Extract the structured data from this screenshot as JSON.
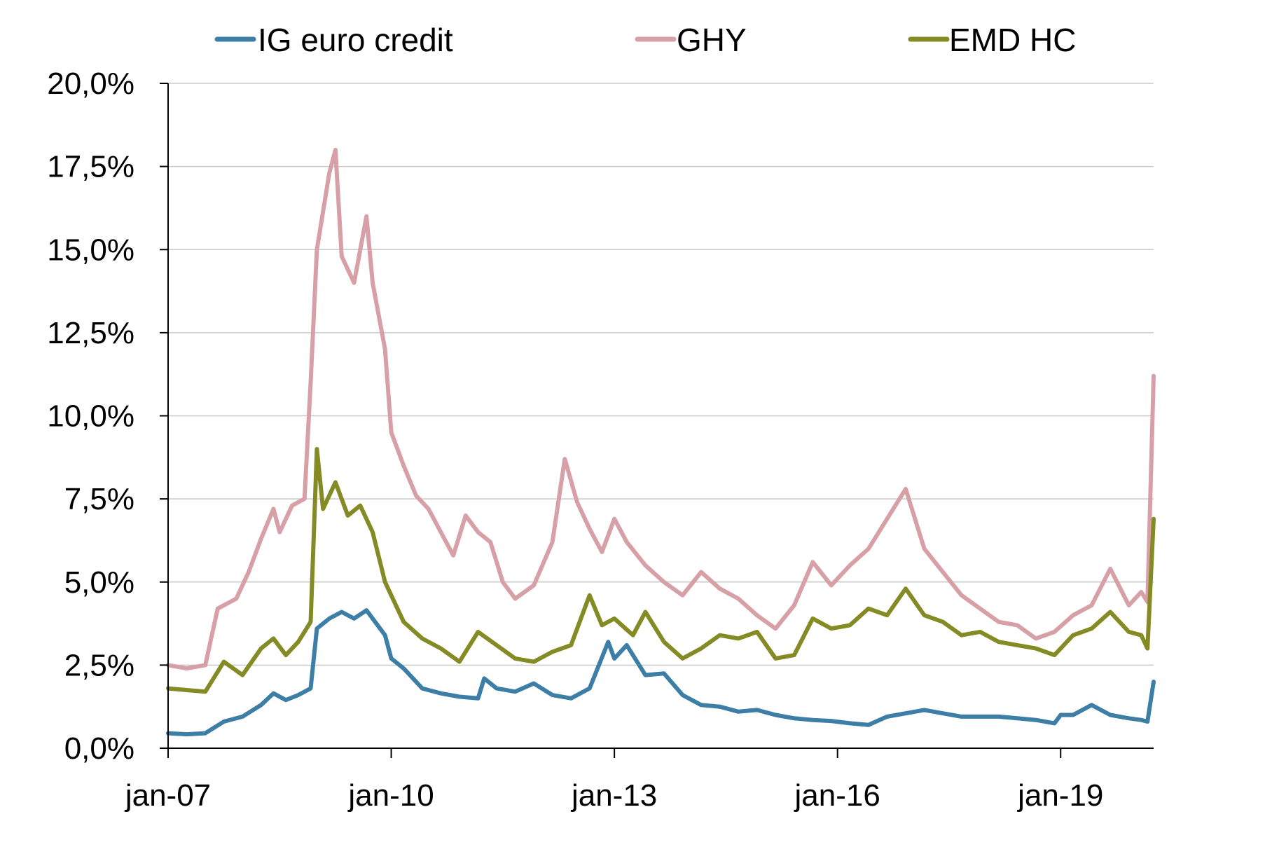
{
  "chart_data": {
    "type": "line",
    "title": "",
    "xlabel": "",
    "ylabel": "",
    "x_range": [
      "2007-01",
      "2020-04"
    ],
    "ylim": [
      0,
      20
    ],
    "y_ticks": [
      0,
      2.5,
      5,
      7.5,
      10,
      12.5,
      15,
      17.5,
      20
    ],
    "y_tick_labels": [
      "0,0%",
      "2,5%",
      "5,0%",
      "7,5%",
      "10,0%",
      "12,5%",
      "15,0%",
      "17,5%",
      "20,0%"
    ],
    "x_ticks": [
      "2007-01",
      "2010-01",
      "2013-01",
      "2016-01",
      "2019-01"
    ],
    "x_tick_labels": [
      "jan-07",
      "jan-10",
      "jan-13",
      "jan-16",
      "jan-19"
    ],
    "grid": "horizontal",
    "legend_position": "top",
    "series": [
      {
        "name": "IG euro credit",
        "color": "#3d7ea6",
        "points": [
          [
            "2007-01",
            0.45
          ],
          [
            "2007-04",
            0.42
          ],
          [
            "2007-07",
            0.45
          ],
          [
            "2007-10",
            0.8
          ],
          [
            "2008-01",
            0.95
          ],
          [
            "2008-04",
            1.3
          ],
          [
            "2008-06",
            1.65
          ],
          [
            "2008-08",
            1.45
          ],
          [
            "2008-10",
            1.6
          ],
          [
            "2008-12",
            1.8
          ],
          [
            "2009-01",
            3.6
          ],
          [
            "2009-03",
            3.9
          ],
          [
            "2009-05",
            4.1
          ],
          [
            "2009-07",
            3.9
          ],
          [
            "2009-09",
            4.15
          ],
          [
            "2009-12",
            3.4
          ],
          [
            "2010-01",
            2.7
          ],
          [
            "2010-03",
            2.4
          ],
          [
            "2010-06",
            1.8
          ],
          [
            "2010-09",
            1.65
          ],
          [
            "2010-12",
            1.55
          ],
          [
            "2011-03",
            1.5
          ],
          [
            "2011-04",
            2.1
          ],
          [
            "2011-06",
            1.8
          ],
          [
            "2011-09",
            1.7
          ],
          [
            "2011-12",
            1.95
          ],
          [
            "2012-03",
            1.6
          ],
          [
            "2012-06",
            1.5
          ],
          [
            "2012-09",
            1.8
          ],
          [
            "2012-12",
            3.2
          ],
          [
            "2013-01",
            2.7
          ],
          [
            "2013-03",
            3.1
          ],
          [
            "2013-06",
            2.2
          ],
          [
            "2013-09",
            2.25
          ],
          [
            "2013-12",
            1.6
          ],
          [
            "2014-03",
            1.3
          ],
          [
            "2014-06",
            1.25
          ],
          [
            "2014-09",
            1.1
          ],
          [
            "2014-12",
            1.15
          ],
          [
            "2015-03",
            1.0
          ],
          [
            "2015-06",
            0.9
          ],
          [
            "2015-09",
            0.85
          ],
          [
            "2015-12",
            0.82
          ],
          [
            "2016-03",
            0.75
          ],
          [
            "2016-06",
            0.7
          ],
          [
            "2016-09",
            0.95
          ],
          [
            "2016-12",
            1.05
          ],
          [
            "2017-03",
            1.15
          ],
          [
            "2017-06",
            1.05
          ],
          [
            "2017-09",
            0.95
          ],
          [
            "2017-12",
            0.95
          ],
          [
            "2018-03",
            0.95
          ],
          [
            "2018-06",
            0.9
          ],
          [
            "2018-09",
            0.85
          ],
          [
            "2018-12",
            0.75
          ],
          [
            "2019-01",
            1.0
          ],
          [
            "2019-03",
            1.0
          ],
          [
            "2019-06",
            1.3
          ],
          [
            "2019-09",
            1.0
          ],
          [
            "2019-12",
            0.9
          ],
          [
            "2020-02",
            0.85
          ],
          [
            "2020-03",
            0.8
          ],
          [
            "2020-04",
            2.0
          ]
        ]
      },
      {
        "name": "GHY",
        "color": "#d6a0a6",
        "points": [
          [
            "2007-01",
            2.5
          ],
          [
            "2007-04",
            2.4
          ],
          [
            "2007-07",
            2.5
          ],
          [
            "2007-09",
            4.2
          ],
          [
            "2007-12",
            4.5
          ],
          [
            "2008-02",
            5.3
          ],
          [
            "2008-04",
            6.3
          ],
          [
            "2008-06",
            7.2
          ],
          [
            "2008-07",
            6.5
          ],
          [
            "2008-09",
            7.3
          ],
          [
            "2008-11",
            7.5
          ],
          [
            "2008-12",
            11.0
          ],
          [
            "2009-01",
            15.0
          ],
          [
            "2009-03",
            17.3
          ],
          [
            "2009-04",
            18.0
          ],
          [
            "2009-05",
            14.8
          ],
          [
            "2009-07",
            14.0
          ],
          [
            "2009-09",
            16.0
          ],
          [
            "2009-10",
            14.0
          ],
          [
            "2009-12",
            12.0
          ],
          [
            "2010-01",
            9.5
          ],
          [
            "2010-03",
            8.5
          ],
          [
            "2010-05",
            7.6
          ],
          [
            "2010-07",
            7.2
          ],
          [
            "2010-09",
            6.5
          ],
          [
            "2010-11",
            5.8
          ],
          [
            "2011-01",
            7.0
          ],
          [
            "2011-03",
            6.5
          ],
          [
            "2011-05",
            6.2
          ],
          [
            "2011-07",
            5.0
          ],
          [
            "2011-09",
            4.5
          ],
          [
            "2011-12",
            4.9
          ],
          [
            "2012-03",
            6.2
          ],
          [
            "2012-05",
            8.7
          ],
          [
            "2012-07",
            7.4
          ],
          [
            "2012-09",
            6.6
          ],
          [
            "2012-11",
            5.9
          ],
          [
            "2013-01",
            6.9
          ],
          [
            "2013-03",
            6.2
          ],
          [
            "2013-06",
            5.5
          ],
          [
            "2013-09",
            5.0
          ],
          [
            "2013-12",
            4.6
          ],
          [
            "2014-03",
            5.3
          ],
          [
            "2014-06",
            4.8
          ],
          [
            "2014-09",
            4.5
          ],
          [
            "2014-12",
            4.0
          ],
          [
            "2015-03",
            3.6
          ],
          [
            "2015-06",
            4.3
          ],
          [
            "2015-09",
            5.6
          ],
          [
            "2015-12",
            4.9
          ],
          [
            "2016-03",
            5.5
          ],
          [
            "2016-06",
            6.0
          ],
          [
            "2016-09",
            6.9
          ],
          [
            "2016-12",
            7.8
          ],
          [
            "2017-03",
            6.0
          ],
          [
            "2017-06",
            5.3
          ],
          [
            "2017-09",
            4.6
          ],
          [
            "2017-12",
            4.2
          ],
          [
            "2018-03",
            3.8
          ],
          [
            "2018-06",
            3.7
          ],
          [
            "2018-09",
            3.3
          ],
          [
            "2018-12",
            3.5
          ],
          [
            "2019-03",
            4.0
          ],
          [
            "2019-06",
            4.3
          ],
          [
            "2019-09",
            5.4
          ],
          [
            "2019-12",
            4.3
          ],
          [
            "2020-02",
            4.7
          ],
          [
            "2020-03",
            4.4
          ],
          [
            "2020-04",
            11.2
          ]
        ]
      },
      {
        "name": "EMD HC",
        "color": "#848a24",
        "points": [
          [
            "2007-01",
            1.8
          ],
          [
            "2007-04",
            1.75
          ],
          [
            "2007-07",
            1.7
          ],
          [
            "2007-10",
            2.6
          ],
          [
            "2008-01",
            2.2
          ],
          [
            "2008-04",
            3.0
          ],
          [
            "2008-06",
            3.3
          ],
          [
            "2008-08",
            2.8
          ],
          [
            "2008-10",
            3.2
          ],
          [
            "2008-12",
            3.8
          ],
          [
            "2009-01",
            9.0
          ],
          [
            "2009-02",
            7.2
          ],
          [
            "2009-04",
            8.0
          ],
          [
            "2009-06",
            7.0
          ],
          [
            "2009-08",
            7.3
          ],
          [
            "2009-10",
            6.5
          ],
          [
            "2009-12",
            5.0
          ],
          [
            "2010-03",
            3.8
          ],
          [
            "2010-06",
            3.3
          ],
          [
            "2010-09",
            3.0
          ],
          [
            "2010-12",
            2.6
          ],
          [
            "2011-03",
            3.5
          ],
          [
            "2011-06",
            3.1
          ],
          [
            "2011-09",
            2.7
          ],
          [
            "2011-12",
            2.6
          ],
          [
            "2012-03",
            2.9
          ],
          [
            "2012-06",
            3.1
          ],
          [
            "2012-09",
            4.6
          ],
          [
            "2012-11",
            3.7
          ],
          [
            "2013-01",
            3.9
          ],
          [
            "2013-04",
            3.4
          ],
          [
            "2013-06",
            4.1
          ],
          [
            "2013-09",
            3.2
          ],
          [
            "2013-12",
            2.7
          ],
          [
            "2014-03",
            3.0
          ],
          [
            "2014-06",
            3.4
          ],
          [
            "2014-09",
            3.3
          ],
          [
            "2014-12",
            3.5
          ],
          [
            "2015-03",
            2.7
          ],
          [
            "2015-06",
            2.8
          ],
          [
            "2015-09",
            3.9
          ],
          [
            "2015-12",
            3.6
          ],
          [
            "2016-03",
            3.7
          ],
          [
            "2016-06",
            4.2
          ],
          [
            "2016-09",
            4.0
          ],
          [
            "2016-12",
            4.8
          ],
          [
            "2017-03",
            4.0
          ],
          [
            "2017-06",
            3.8
          ],
          [
            "2017-09",
            3.4
          ],
          [
            "2017-12",
            3.5
          ],
          [
            "2018-03",
            3.2
          ],
          [
            "2018-06",
            3.1
          ],
          [
            "2018-09",
            3.0
          ],
          [
            "2018-12",
            2.8
          ],
          [
            "2019-03",
            3.4
          ],
          [
            "2019-06",
            3.6
          ],
          [
            "2019-09",
            4.1
          ],
          [
            "2019-12",
            3.5
          ],
          [
            "2020-02",
            3.4
          ],
          [
            "2020-03",
            3.0
          ],
          [
            "2020-04",
            6.9
          ]
        ]
      }
    ]
  }
}
